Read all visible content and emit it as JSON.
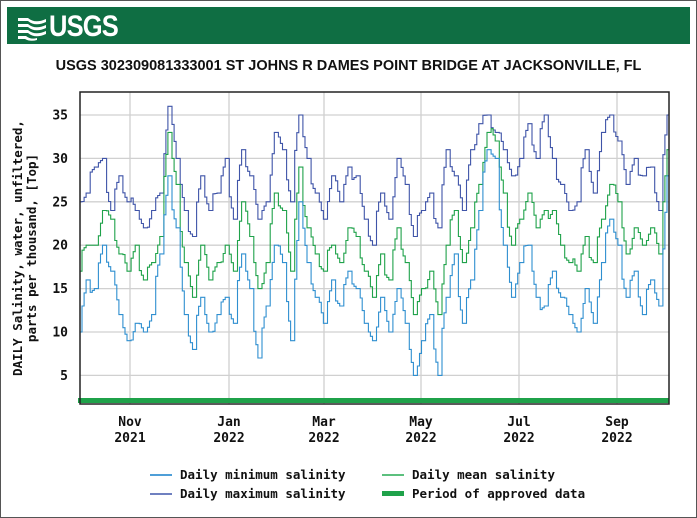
{
  "header": {
    "logo_text": "USGS",
    "banner_color": "#0f6e43"
  },
  "chart_data": {
    "type": "line",
    "title": "USGS 302309081333001 ST JOHNS R DAMES POINT BRIDGE AT JACKSONVILLE, FL",
    "ylabel_line1": "DAILY Salinity, water, unfiltered,",
    "ylabel_line2": "parts per thousand, [Top]",
    "xlabel": "",
    "ylim": [
      2,
      37
    ],
    "yticks": [
      5,
      10,
      15,
      20,
      25,
      30,
      35
    ],
    "grid": true,
    "legend_position": "bottom",
    "x_ticks": [
      {
        "month": "Nov",
        "year": "2021"
      },
      {
        "month": "Jan",
        "year": "2022"
      },
      {
        "month": "Mar",
        "year": "2022"
      },
      {
        "month": "May",
        "year": "2022"
      },
      {
        "month": "Jul",
        "year": "2022"
      },
      {
        "month": "Sep",
        "year": "2022"
      }
    ],
    "x_range": [
      "2021-10-01",
      "2022-10-01"
    ],
    "sample_interval_days": 5,
    "series": [
      {
        "name": "Daily minimum salinity",
        "color": "#2f8fd0",
        "values": [
          10,
          16,
          15,
          20,
          17,
          12,
          9,
          11,
          10,
          12,
          19,
          28,
          22,
          12,
          8,
          14,
          10,
          12,
          14,
          11,
          19,
          15,
          7,
          13,
          20,
          18,
          9,
          25,
          18,
          14,
          11,
          16,
          13,
          17,
          15,
          11,
          9,
          14,
          10,
          15,
          11,
          5,
          9,
          12,
          5,
          14,
          19,
          11,
          16,
          24,
          31,
          30,
          20,
          14,
          18,
          20,
          14,
          13,
          17,
          14,
          12,
          10,
          15,
          11,
          18,
          23,
          20,
          14,
          17,
          12,
          16,
          13,
          28
        ]
      },
      {
        "name": "Daily mean salinity",
        "color": "#1fa24a",
        "values": [
          17,
          20,
          20,
          24,
          23,
          19,
          17,
          20,
          16,
          18,
          21,
          33,
          27,
          18,
          14,
          20,
          16,
          18,
          20,
          17,
          25,
          21,
          15,
          18,
          26,
          24,
          17,
          29,
          22,
          19,
          17,
          20,
          18,
          22,
          21,
          17,
          14,
          19,
          16,
          22,
          18,
          12,
          15,
          17,
          12,
          20,
          24,
          18,
          22,
          27,
          33,
          32,
          26,
          20,
          23,
          26,
          22,
          24,
          24,
          20,
          18,
          17,
          21,
          18,
          23,
          27,
          25,
          19,
          22,
          20,
          22,
          19,
          31
        ]
      },
      {
        "name": "Daily maximum salinity",
        "color": "#3f54a8",
        "values": [
          25,
          26,
          29,
          30,
          24,
          28,
          25,
          24,
          22,
          24,
          26,
          36,
          30,
          24,
          21,
          28,
          24,
          26,
          30,
          23,
          31,
          28,
          23,
          25,
          33,
          31,
          25,
          35,
          30,
          26,
          23,
          28,
          25,
          29,
          28,
          23,
          20,
          26,
          23,
          30,
          27,
          21,
          24,
          26,
          22,
          31,
          28,
          24,
          31,
          34,
          35,
          33,
          31,
          28,
          30,
          34,
          30,
          35,
          30,
          27,
          24,
          25,
          31,
          26,
          33,
          35,
          32,
          27,
          30,
          28,
          29,
          24,
          35
        ]
      }
    ],
    "approved_period": {
      "label": "Period of approved data",
      "color": "#1fa24a",
      "y_value": 2.3
    }
  },
  "legend": {
    "items": [
      {
        "label": "Daily minimum salinity",
        "color": "#4f9fd8"
      },
      {
        "label": "Daily mean salinity",
        "color": "#5cc07e"
      },
      {
        "label": "Daily maximum salinity",
        "color": "#6f80c0"
      },
      {
        "label": "Period of approved data",
        "color": "#1fa24a"
      }
    ]
  }
}
